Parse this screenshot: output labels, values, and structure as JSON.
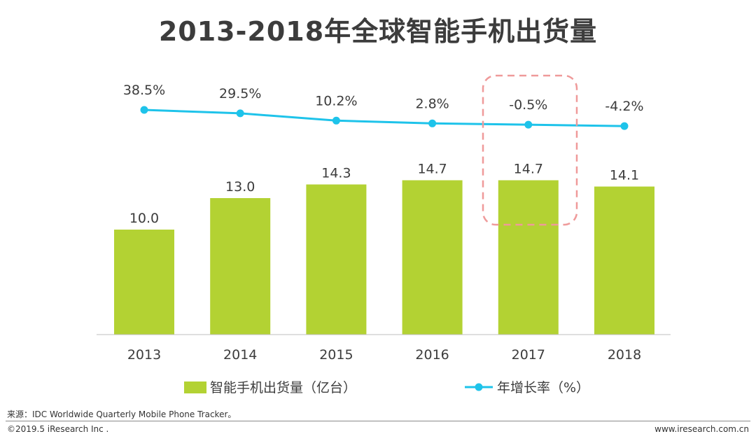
{
  "title": "2013-2018年全球智能手机出货量",
  "colors": {
    "bar": "#b3d233",
    "line": "#1ec3ea",
    "highlight_box": "#ef9a9a",
    "text": "#3c3c3c",
    "axis": "#bfbfbf"
  },
  "chart_data": {
    "type": "bar",
    "title": "2013-2018年全球智能手机出货量",
    "categories": [
      "2013",
      "2014",
      "2015",
      "2016",
      "2017",
      "2018"
    ],
    "series": [
      {
        "name": "智能手机出货量（亿台）",
        "type": "bar",
        "values": [
          10.0,
          13.0,
          14.3,
          14.7,
          14.7,
          14.1
        ],
        "labels": [
          "10.0",
          "13.0",
          "14.3",
          "14.7",
          "14.7",
          "14.1"
        ]
      },
      {
        "name": "年增长率（%）",
        "type": "line",
        "values": [
          38.5,
          29.5,
          10.2,
          2.8,
          -0.5,
          -4.2
        ],
        "labels": [
          "38.5%",
          "29.5%",
          "10.2%",
          "2.8%",
          "-0.5%",
          "-4.2%"
        ]
      }
    ],
    "highlight_category": "2017",
    "legend_position": "bottom",
    "grid": false
  },
  "legend": {
    "bar_label": "智能手机出货量（亿台）",
    "line_label": "年增长率（%）"
  },
  "footer": {
    "source": "来源：IDC Worldwide Quarterly Mobile Phone Tracker。",
    "copyright": "©2019.5 iResearch Inc .",
    "website": "www.iresearch.com.cn"
  }
}
